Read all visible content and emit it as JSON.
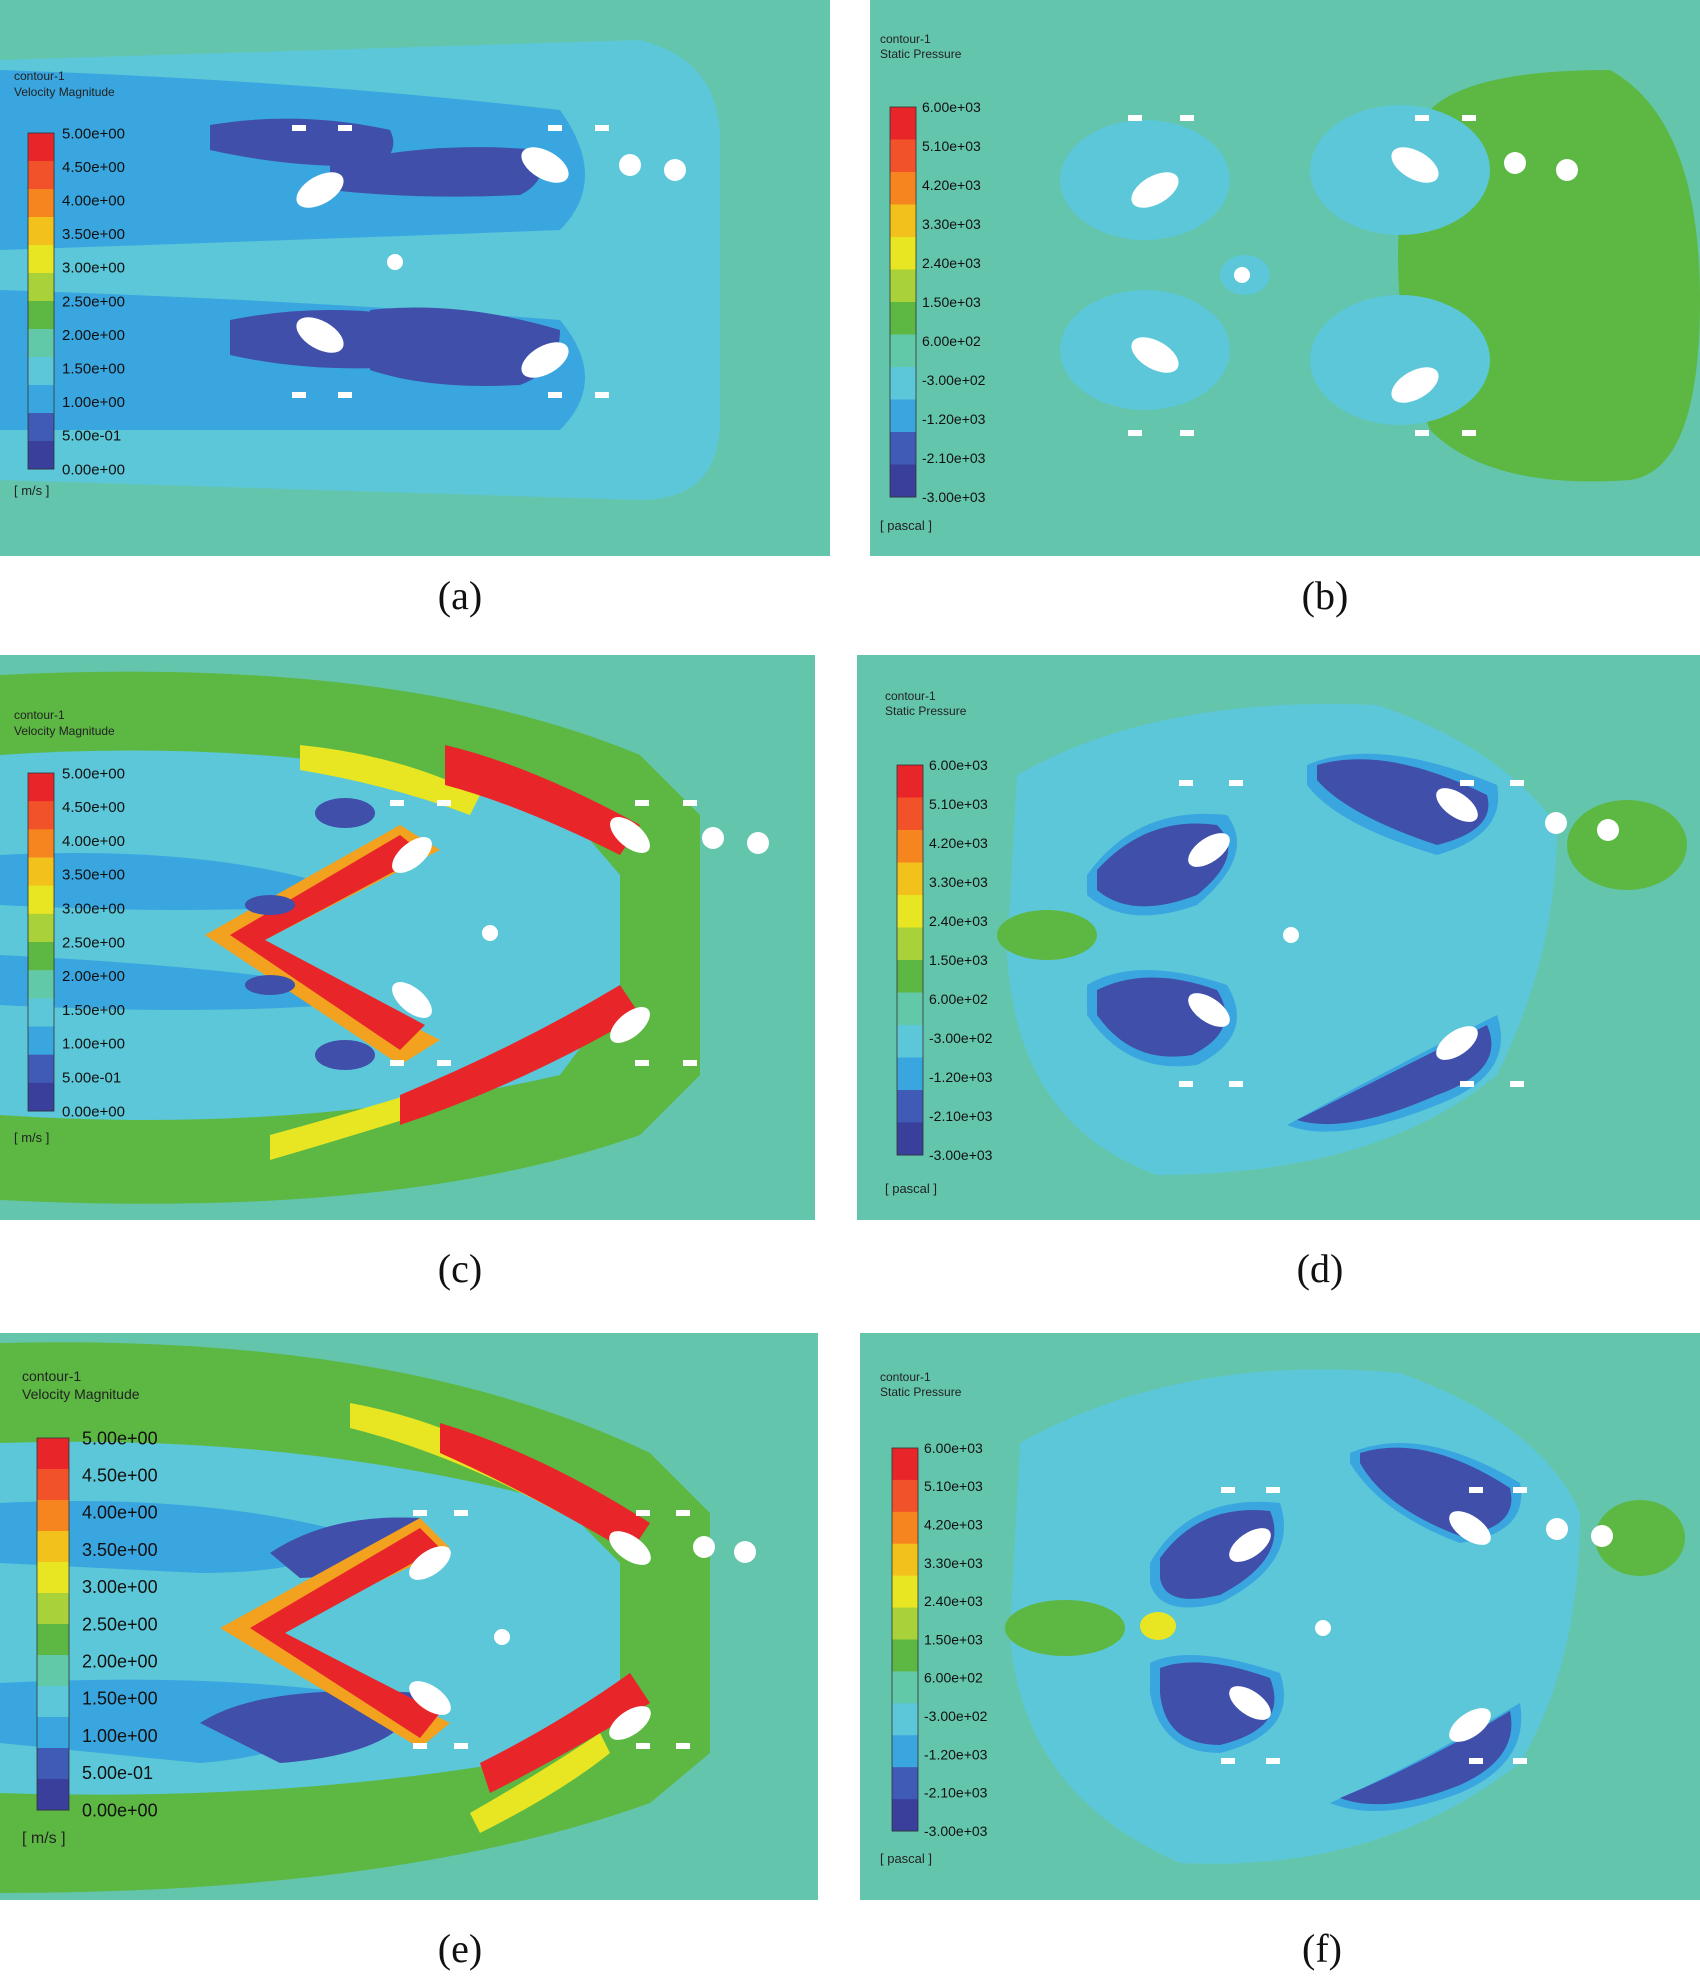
{
  "figure": {
    "panels": [
      {
        "id": "a",
        "caption": "(a)",
        "legend": {
          "name": "contour-1",
          "variable": "Velocity Magnitude",
          "unit": "[ m/s ]",
          "levels": [
            "5.00e+00",
            "4.50e+00",
            "4.00e+00",
            "3.50e+00",
            "3.00e+00",
            "2.50e+00",
            "2.00e+00",
            "1.50e+00",
            "1.00e+00",
            "5.00e-01",
            "0.00e+00"
          ]
        }
      },
      {
        "id": "b",
        "caption": "(b)",
        "legend": {
          "name": "contour-1",
          "variable": "Static Pressure",
          "unit": "[ pascal ]",
          "levels": [
            "6.00e+03",
            "5.10e+03",
            "4.20e+03",
            "3.30e+03",
            "2.40e+03",
            "1.50e+03",
            "6.00e+02",
            "-3.00e+02",
            "-1.20e+03",
            "-2.10e+03",
            "-3.00e+03"
          ]
        }
      },
      {
        "id": "c",
        "caption": "(c)",
        "legend": {
          "name": "contour-1",
          "variable": "Velocity Magnitude",
          "unit": "[ m/s ]",
          "levels": [
            "5.00e+00",
            "4.50e+00",
            "4.00e+00",
            "3.50e+00",
            "3.00e+00",
            "2.50e+00",
            "2.00e+00",
            "1.50e+00",
            "1.00e+00",
            "5.00e-01",
            "0.00e+00"
          ]
        }
      },
      {
        "id": "d",
        "caption": "(d)",
        "legend": {
          "name": "contour-1",
          "variable": "Static Pressure",
          "unit": "[ pascal ]",
          "levels": [
            "6.00e+03",
            "5.10e+03",
            "4.20e+03",
            "3.30e+03",
            "2.40e+03",
            "1.50e+03",
            "6.00e+02",
            "-3.00e+02",
            "-1.20e+03",
            "-2.10e+03",
            "-3.00e+03"
          ]
        }
      },
      {
        "id": "e",
        "caption": "(e)",
        "legend": {
          "name": "contour-1",
          "variable": "Velocity Magnitude",
          "unit": "[ m/s ]",
          "levels": [
            "5.00e+00",
            "4.50e+00",
            "4.00e+00",
            "3.50e+00",
            "3.00e+00",
            "2.50e+00",
            "2.00e+00",
            "1.50e+00",
            "1.00e+00",
            "5.00e-01",
            "0.00e+00"
          ]
        }
      },
      {
        "id": "f",
        "caption": "(f)",
        "legend": {
          "name": "contour-1",
          "variable": "Static Pressure",
          "unit": "[ pascal ]",
          "levels": [
            "6.00e+03",
            "5.10e+03",
            "4.20e+03",
            "3.30e+03",
            "2.40e+03",
            "1.50e+03",
            "6.00e+02",
            "-3.00e+02",
            "-1.20e+03",
            "-2.10e+03",
            "-3.00e+03"
          ]
        }
      }
    ],
    "colormap": [
      "#e8262a",
      "#f2522a",
      "#f7851f",
      "#f2c11c",
      "#e8e622",
      "#a8d13a",
      "#5cb843",
      "#62c9a8",
      "#5cc7d8",
      "#3aa6e0",
      "#3f5bb5",
      "#3a3f9c"
    ],
    "colors": {
      "background": "#64c5ad",
      "light_blue": "#5cc7d8",
      "mid_blue": "#3aa6e0",
      "dark_blue": "#3f4faa",
      "green": "#5cb843",
      "yellow_green": "#a8d13a",
      "yellow": "#e8e622",
      "orange": "#f2a21f",
      "red": "#e8262a",
      "obstacle": "#ffffff"
    }
  }
}
